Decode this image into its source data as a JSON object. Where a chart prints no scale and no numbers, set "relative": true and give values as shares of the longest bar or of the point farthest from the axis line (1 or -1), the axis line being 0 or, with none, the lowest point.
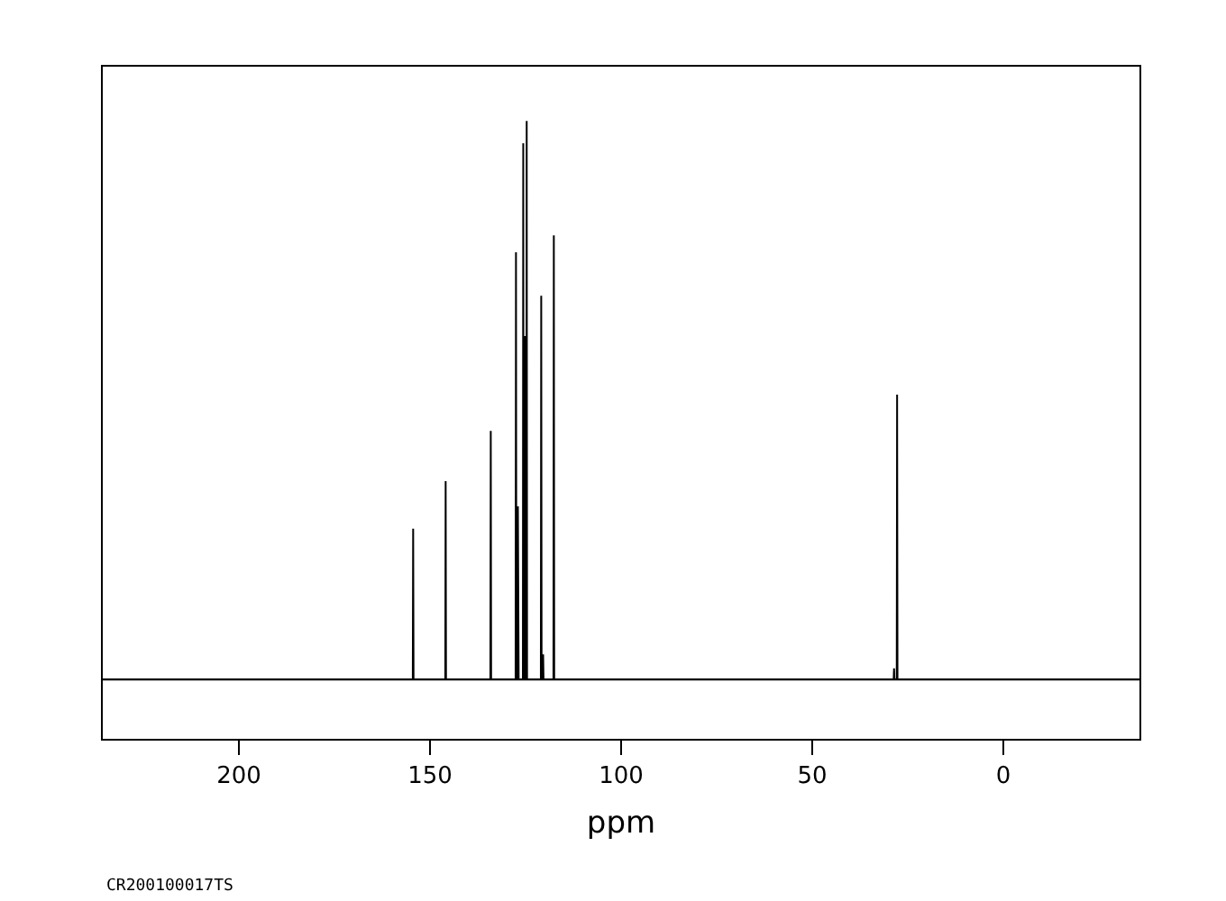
{
  "chart_data": {
    "type": "line",
    "relative": true,
    "xlabel": "ppm",
    "annotations": [
      "CR200100017TS"
    ],
    "x": [
      235.6,
      154.5,
      154.4,
      154.3,
      146.0,
      145.9,
      145.8,
      134.2,
      134.1,
      134.0,
      127.6,
      127.5,
      127.4,
      127.2,
      127.0,
      126.8,
      125.7,
      125.6,
      125.5,
      125.2,
      125.1,
      124.9,
      124.8,
      124.7,
      124.6,
      121.0,
      120.9,
      120.8,
      120.5,
      120.4,
      120.3,
      117.7,
      117.6,
      117.5,
      28.7,
      28.6,
      28.5,
      27.9,
      27.8,
      27.7,
      -35.6
    ],
    "series": [
      {
        "color": "#000000",
        "values": [
          0,
          0,
          0.27,
          0,
          0,
          0.355,
          0,
          0,
          0.445,
          0,
          0,
          0.765,
          0,
          0,
          0.31,
          0,
          0,
          0.96,
          0,
          0,
          0.615,
          0,
          0,
          1,
          0,
          0,
          0.687,
          0,
          0,
          0.045,
          0,
          0,
          0.795,
          0,
          0,
          0.02,
          0,
          0,
          0.51,
          0,
          0
        ]
      }
    ],
    "xlim": [
      235.6,
      -35.6
    ],
    "xticks": [
      200,
      150,
      100,
      50,
      0
    ],
    "marker": "none",
    "line_style": "solid"
  }
}
